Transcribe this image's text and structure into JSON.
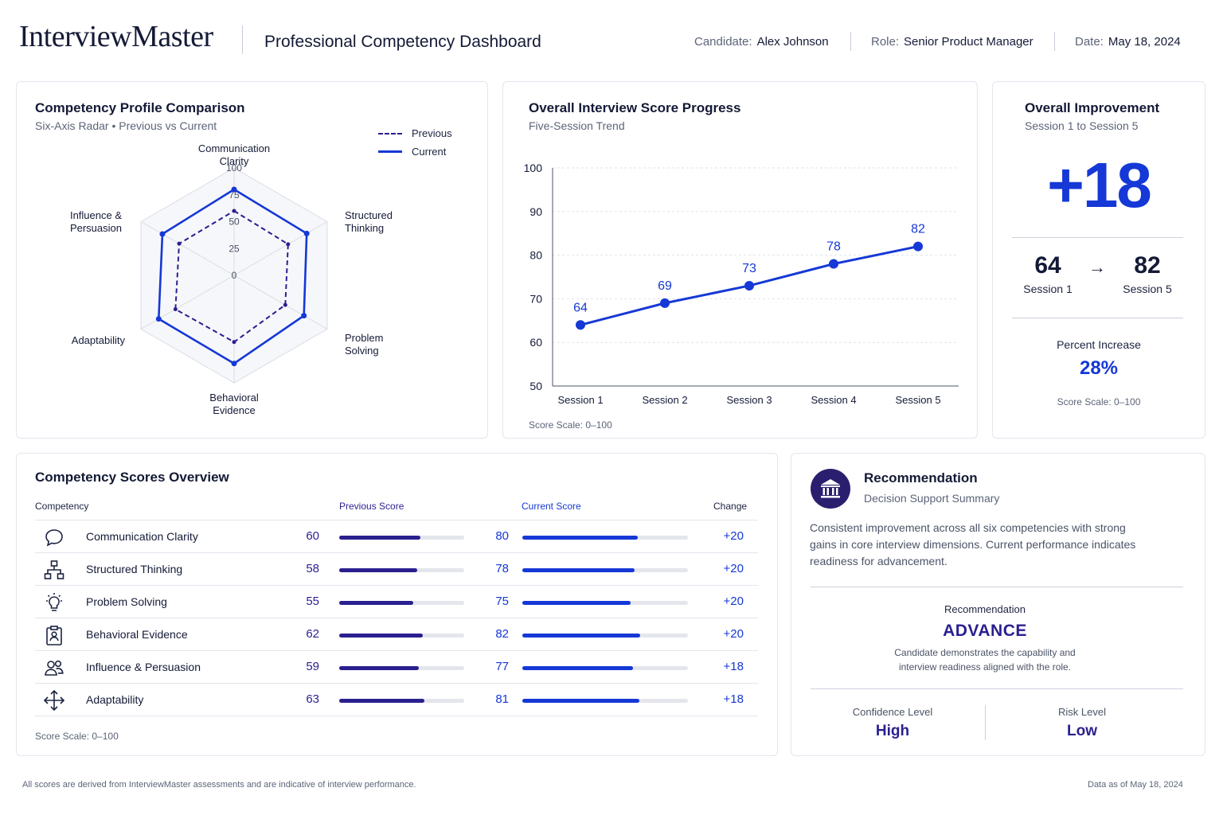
{
  "header": {
    "logo": "InterviewMaster",
    "title": "Professional Competency Dashboard",
    "candidate_label": "Candidate:",
    "candidate_value": "Alex Johnson",
    "role_label": "Role:",
    "role_value": "Senior Product Manager",
    "date_label": "Date:",
    "date_value": "May 18, 2024"
  },
  "radar": {
    "title": "Competency Profile Comparison",
    "subtitle": "Six-Axis Radar  •  Previous vs Current",
    "legend_previous": "Previous",
    "legend_current": "Current",
    "axis_labels": [
      [
        "Communication",
        "Clarity"
      ],
      [
        "Structured",
        "Thinking"
      ],
      [
        "Problem",
        "Solving"
      ],
      [
        "Behavioral",
        "Evidence"
      ],
      [
        "Adaptability"
      ],
      [
        "Influence &",
        "Persuasion"
      ]
    ],
    "ring_ticks": [
      "100",
      "75",
      "50",
      "25",
      "0"
    ]
  },
  "progress": {
    "title": "Overall Interview Score Progress",
    "subtitle": "Five-Session Trend",
    "footnote": "Score Scale: 0–100"
  },
  "improvement": {
    "title": "Overall Improvement",
    "subtitle": "Session 1 to Session 5",
    "delta": "+18",
    "from_value": "64",
    "from_label": "Session 1",
    "to_value": "82",
    "to_label": "Session 5",
    "arrow": "→",
    "percent_label": "Percent Increase",
    "percent_value": "28%",
    "footnote": "Score Scale: 0–100"
  },
  "scores_table": {
    "title": "Competency Scores Overview",
    "col_competency": "Competency",
    "col_previous": "Previous Score",
    "col_current": "Current Score",
    "col_change": "Change",
    "footnote": "Score Scale: 0–100",
    "rows": [
      {
        "name": "Communication Clarity",
        "previous": "60",
        "current": "80",
        "change": "+20",
        "icon": "speech-bubble-icon"
      },
      {
        "name": "Structured Thinking",
        "previous": "58",
        "current": "78",
        "change": "+20",
        "icon": "hierarchy-icon"
      },
      {
        "name": "Problem Solving",
        "previous": "55",
        "current": "75",
        "change": "+20",
        "icon": "lightbulb-icon"
      },
      {
        "name": "Behavioral Evidence",
        "previous": "62",
        "current": "82",
        "change": "+20",
        "icon": "clipboard-user-icon"
      },
      {
        "name": "Influence & Persuasion",
        "previous": "59",
        "current": "77",
        "change": "+18",
        "icon": "people-icon"
      },
      {
        "name": "Adaptability",
        "previous": "63",
        "current": "81",
        "change": "+18",
        "icon": "move-arrows-icon"
      }
    ]
  },
  "recommendation": {
    "title": "Recommendation",
    "subtitle": "Decision Support Summary",
    "summary": "Consistent improvement across all six competencies with strong gains in core interview dimensions. Current performance indicates readiness for advancement.",
    "rec_label": "Recommendation",
    "rec_value": "ADVANCE",
    "rec_note_1": "Candidate demonstrates the capability and",
    "rec_note_2": "interview readiness aligned with the role.",
    "confidence_label": "Confidence Level",
    "confidence_value": "High",
    "risk_label": "Risk Level",
    "risk_value": "Low"
  },
  "footer": {
    "disclaimer": "All scores are derived from InterviewMaster assessments and are indicative of interview performance.",
    "data_as_of": "Data as of May 18, 2024"
  },
  "colors": {
    "current": "#1538d6",
    "previous": "#2a1f8f",
    "text_dark": "#141a36"
  },
  "chart_data": [
    {
      "type": "radar",
      "title": "Competency Profile Comparison",
      "axes": [
        "Communication Clarity",
        "Structured Thinking",
        "Problem Solving",
        "Behavioral Evidence",
        "Adaptability",
        "Influence & Persuasion"
      ],
      "range": [
        0,
        100
      ],
      "series": [
        {
          "name": "Previous",
          "values": [
            60,
            58,
            55,
            62,
            63,
            59
          ]
        },
        {
          "name": "Current",
          "values": [
            80,
            78,
            75,
            82,
            81,
            77
          ]
        }
      ]
    },
    {
      "type": "line",
      "title": "Overall Interview Score Progress",
      "categories": [
        "Session 1",
        "Session 2",
        "Session 3",
        "Session 4",
        "Session 5"
      ],
      "values": [
        64,
        69,
        73,
        78,
        82
      ],
      "ylim": [
        50,
        100
      ],
      "yticks": [
        50,
        60,
        70,
        80,
        90,
        100
      ],
      "grid": true
    }
  ]
}
